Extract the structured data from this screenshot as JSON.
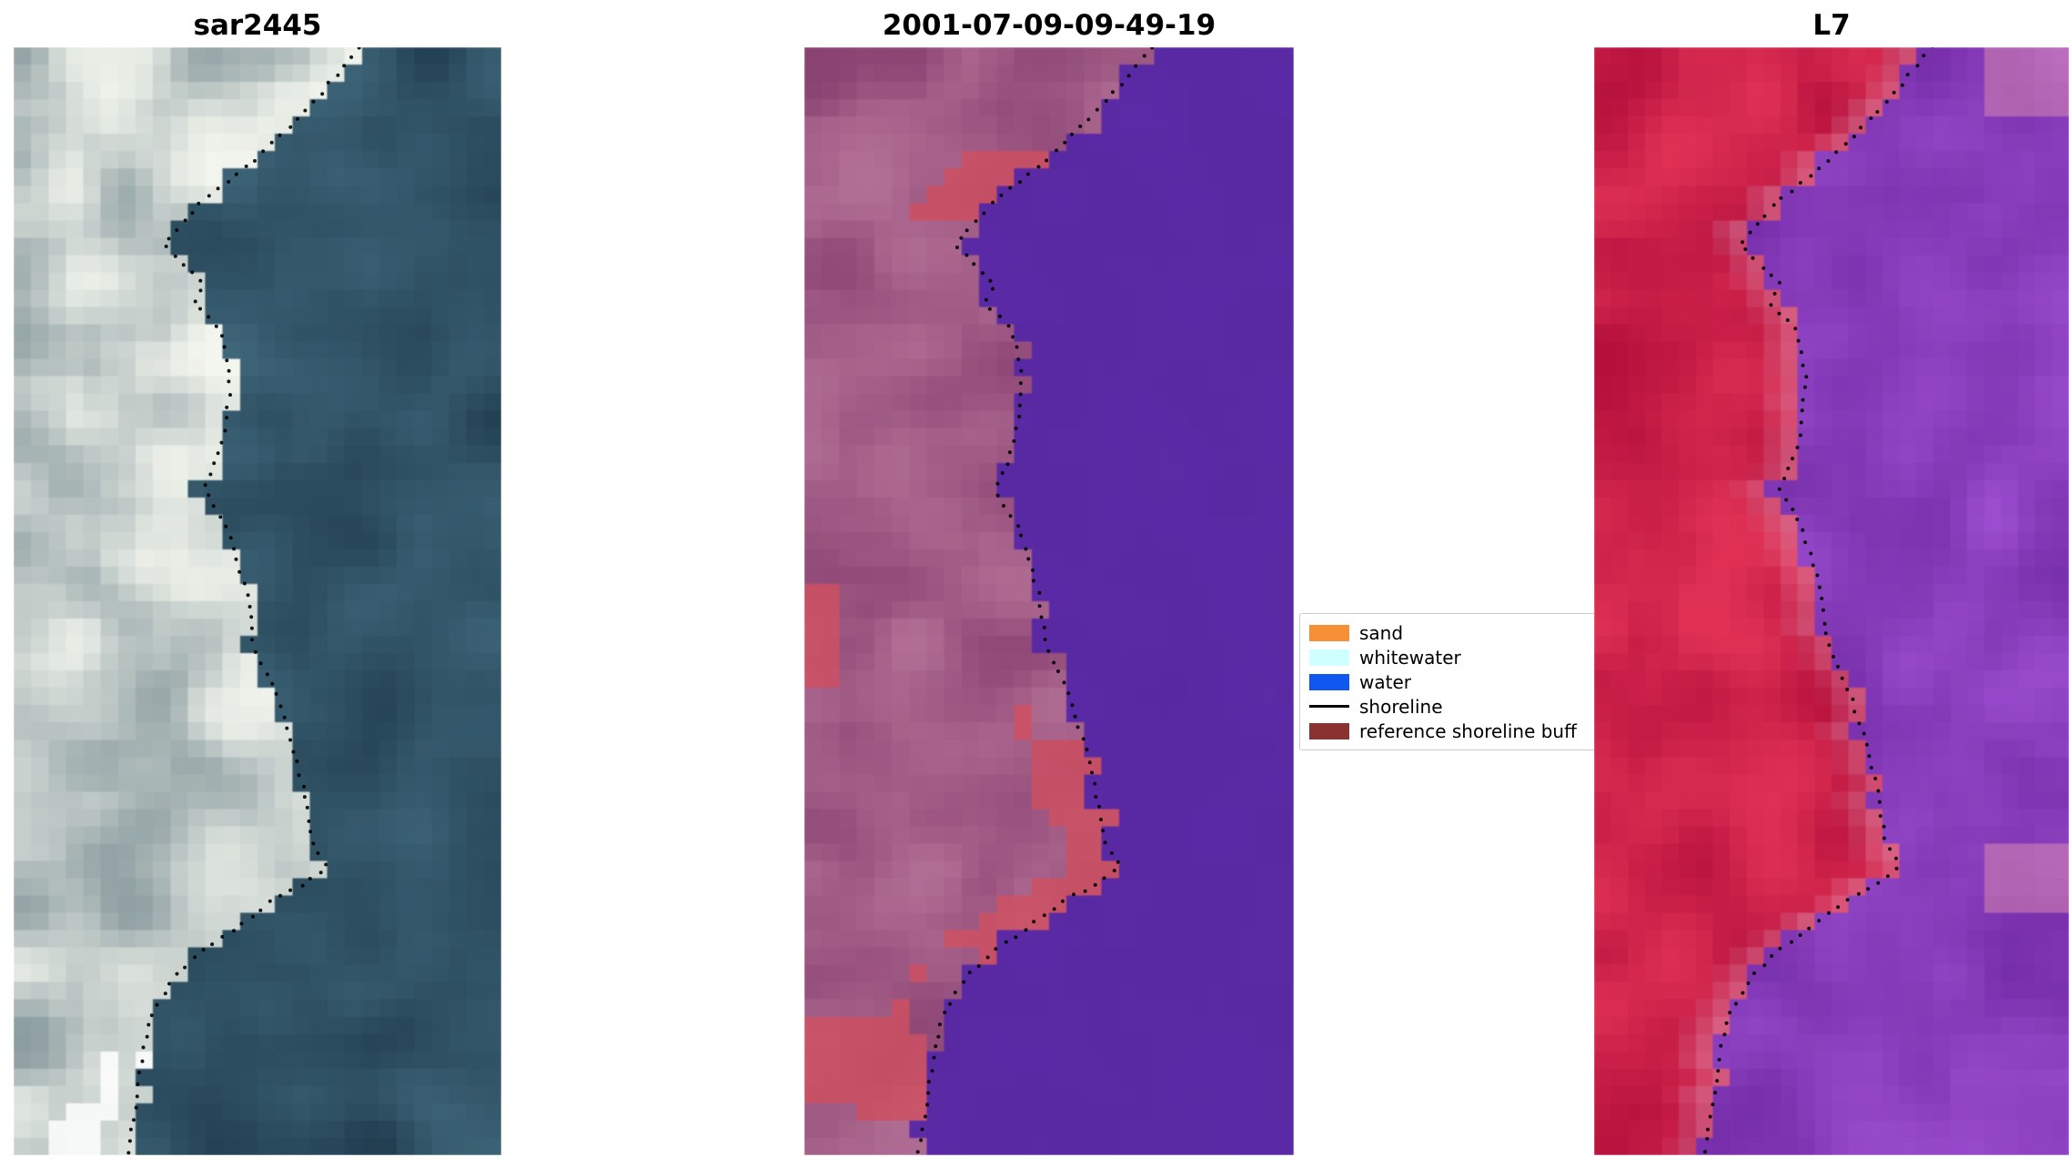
{
  "figure": {
    "background": "#ffffff",
    "panels": [
      {
        "title": "sar2445",
        "seed": 7,
        "colors": {
          "land_dark": "#8c9da0",
          "land_light": "#f3f6ee",
          "water_dark": "#223f52",
          "water_light": "#3f6679"
        }
      },
      {
        "title": "2001-07-09-09-49-19",
        "seed": 13,
        "colors": {
          "land_dark": "#8a4272",
          "land_light": "#b26f94",
          "accent": "#d04f60",
          "water_dark": "#55269e",
          "water_light": "#5e2caa"
        }
      },
      {
        "title": "L7",
        "seed": 21,
        "colors": {
          "land_dark": "#b5103c",
          "land_light": "#e03155",
          "accent": "#dd8fae",
          "water_dark": "#7229a4",
          "water_light": "#9a4ecf"
        }
      }
    ],
    "legend": {
      "items": [
        {
          "label": "sand",
          "swatch": "patch",
          "color": "#F68F35"
        },
        {
          "label": "whitewater",
          "swatch": "patch",
          "color": "#CFFFFF"
        },
        {
          "label": "water",
          "swatch": "patch",
          "color": "#1057F0"
        },
        {
          "label": "shoreline",
          "swatch": "line",
          "color": "#000000"
        },
        {
          "label": "reference shoreline buff",
          "swatch": "patch",
          "color": "#8A3230"
        }
      ]
    },
    "shoreline_overlay": {
      "color": "#000000",
      "marker": "dot"
    }
  },
  "chart_data": {
    "type": "image",
    "subplot_titles": [
      "sar2445",
      "2001-07-09-09-49-19",
      "L7"
    ],
    "legend_entries": [
      "sand",
      "whitewater",
      "water",
      "shoreline",
      "reference shoreline buff"
    ],
    "legend_position": "center-right",
    "shoreline_points_norm_yx": [
      [
        0.0,
        0.71
      ],
      [
        0.05,
        0.615
      ],
      [
        0.1,
        0.5
      ],
      [
        0.14,
        0.385
      ],
      [
        0.178,
        0.307
      ],
      [
        0.214,
        0.39
      ],
      [
        0.232,
        0.37
      ],
      [
        0.255,
        0.425
      ],
      [
        0.297,
        0.445
      ],
      [
        0.351,
        0.433
      ],
      [
        0.385,
        0.405
      ],
      [
        0.399,
        0.39
      ],
      [
        0.434,
        0.438
      ],
      [
        0.494,
        0.479
      ],
      [
        0.542,
        0.493
      ],
      [
        0.578,
        0.534
      ],
      [
        0.625,
        0.57
      ],
      [
        0.673,
        0.597
      ],
      [
        0.721,
        0.616
      ],
      [
        0.739,
        0.644
      ],
      [
        0.757,
        0.589
      ],
      [
        0.769,
        0.534
      ],
      [
        0.792,
        0.466
      ],
      [
        0.816,
        0.384
      ],
      [
        0.84,
        0.329
      ],
      [
        0.876,
        0.279
      ],
      [
        0.924,
        0.26
      ],
      [
        1.0,
        0.233
      ]
    ]
  }
}
